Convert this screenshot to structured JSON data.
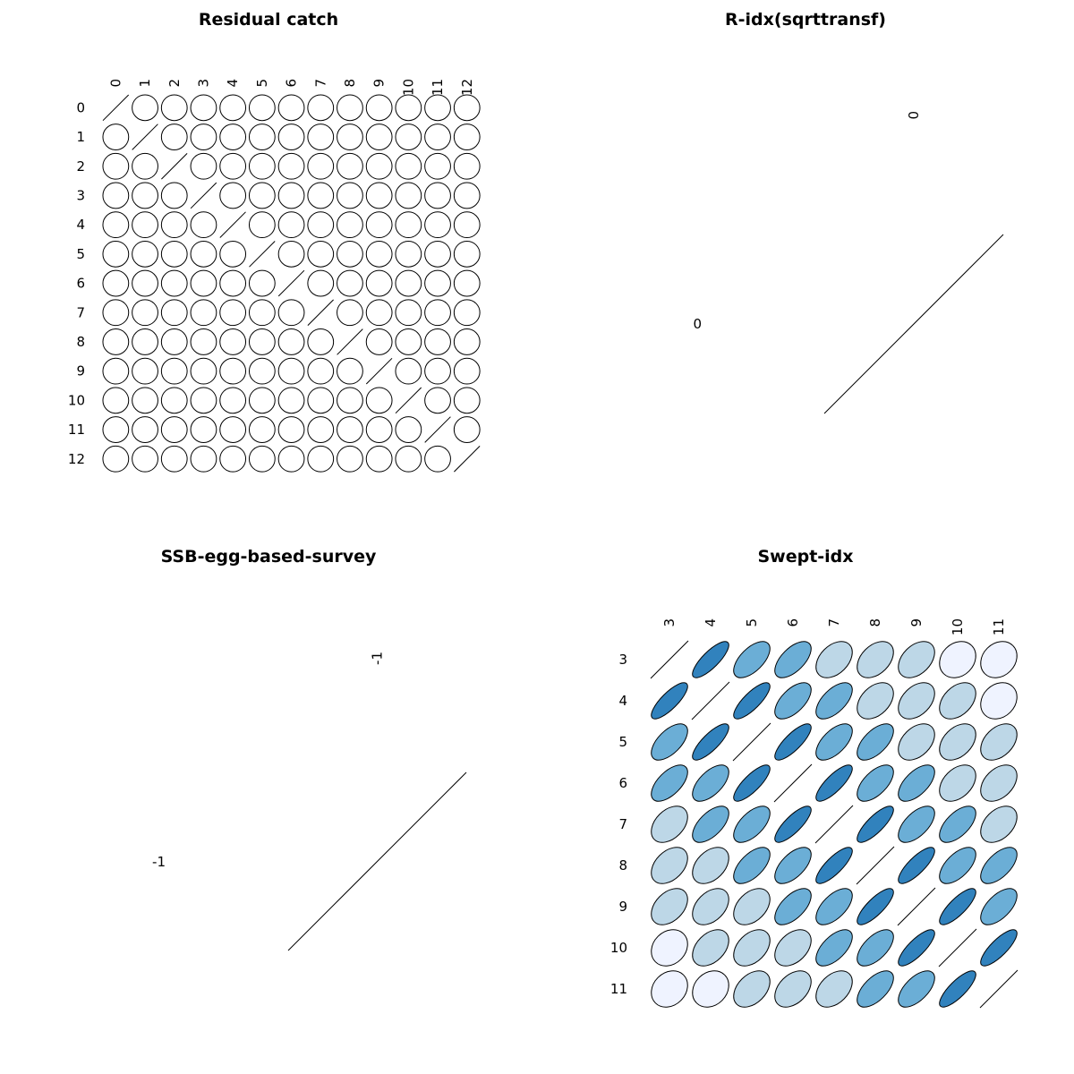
{
  "chart_data": [
    {
      "type": "heatmap",
      "title": "Residual catch",
      "variables": [
        "0",
        "1",
        "2",
        "3",
        "4",
        "5",
        "6",
        "7",
        "8",
        "9",
        "10",
        "11",
        "12"
      ],
      "values": [
        [
          1,
          0,
          0,
          0,
          0,
          0,
          0,
          0,
          0,
          0,
          0,
          0,
          0
        ],
        [
          0,
          1,
          0,
          0,
          0,
          0,
          0,
          0,
          0,
          0,
          0,
          0,
          0
        ],
        [
          0,
          0,
          1,
          0,
          0,
          0,
          0,
          0,
          0,
          0,
          0,
          0,
          0
        ],
        [
          0,
          0,
          0,
          1,
          0,
          0,
          0,
          0,
          0,
          0,
          0,
          0,
          0
        ],
        [
          0,
          0,
          0,
          0,
          1,
          0,
          0,
          0,
          0,
          0,
          0,
          0,
          0
        ],
        [
          0,
          0,
          0,
          0,
          0,
          1,
          0,
          0,
          0,
          0,
          0,
          0,
          0
        ],
        [
          0,
          0,
          0,
          0,
          0,
          0,
          1,
          0,
          0,
          0,
          0,
          0,
          0
        ],
        [
          0,
          0,
          0,
          0,
          0,
          0,
          0,
          1,
          0,
          0,
          0,
          0,
          0
        ],
        [
          0,
          0,
          0,
          0,
          0,
          0,
          0,
          0,
          1,
          0,
          0,
          0,
          0
        ],
        [
          0,
          0,
          0,
          0,
          0,
          0,
          0,
          0,
          0,
          1,
          0,
          0,
          0
        ],
        [
          0,
          0,
          0,
          0,
          0,
          0,
          0,
          0,
          0,
          0,
          1,
          0,
          0
        ],
        [
          0,
          0,
          0,
          0,
          0,
          0,
          0,
          0,
          0,
          0,
          0,
          1,
          0
        ],
        [
          0,
          0,
          0,
          0,
          0,
          0,
          0,
          0,
          0,
          0,
          0,
          0,
          1
        ]
      ],
      "filled": false
    },
    {
      "type": "heatmap",
      "title": "R-idx(sqrttransf)",
      "variables": [
        "0"
      ],
      "values": [
        [
          1
        ]
      ],
      "filled": false
    },
    {
      "type": "heatmap",
      "title": "SSB-egg-based-survey",
      "variables": [
        "-1"
      ],
      "values": [
        [
          1
        ]
      ],
      "filled": false
    },
    {
      "type": "heatmap",
      "title": "Swept-idx",
      "variables": [
        "3",
        "4",
        "5",
        "6",
        "7",
        "8",
        "9",
        "10",
        "11"
      ],
      "values": [
        [
          1,
          0.8,
          0.6,
          0.6,
          0.4,
          0.4,
          0.4,
          0.2,
          0.2
        ],
        [
          0.8,
          1,
          0.8,
          0.6,
          0.6,
          0.4,
          0.4,
          0.4,
          0.2
        ],
        [
          0.6,
          0.8,
          1,
          0.8,
          0.6,
          0.6,
          0.4,
          0.4,
          0.4
        ],
        [
          0.6,
          0.6,
          0.8,
          1,
          0.8,
          0.6,
          0.6,
          0.4,
          0.4
        ],
        [
          0.4,
          0.6,
          0.6,
          0.8,
          1,
          0.8,
          0.6,
          0.6,
          0.4
        ],
        [
          0.4,
          0.4,
          0.6,
          0.6,
          0.8,
          1,
          0.8,
          0.6,
          0.6
        ],
        [
          0.4,
          0.4,
          0.4,
          0.6,
          0.6,
          0.8,
          1,
          0.8,
          0.6
        ],
        [
          0.2,
          0.4,
          0.4,
          0.4,
          0.6,
          0.6,
          0.8,
          1,
          0.8
        ],
        [
          0.2,
          0.2,
          0.4,
          0.4,
          0.4,
          0.6,
          0.6,
          0.8,
          1
        ]
      ],
      "filled": true
    }
  ],
  "colors": {
    "scale": {
      "0.2": "#eff3ff",
      "0.4": "#bdd7e7",
      "0.6": "#6baed6",
      "0.8": "#3182bd"
    },
    "stroke": "#000000"
  }
}
